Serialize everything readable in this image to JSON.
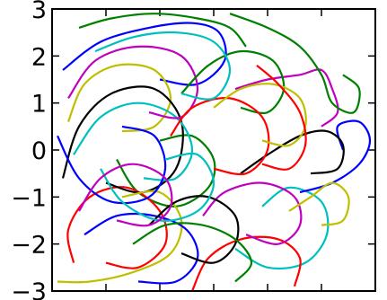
{
  "chart_data": {
    "type": "line",
    "xlim": [
      0,
      6
    ],
    "ylim": [
      -3,
      3
    ],
    "yticks": [
      {
        "value": 3,
        "label": "3"
      },
      {
        "value": 2,
        "label": "2"
      },
      {
        "value": 1,
        "label": "1"
      },
      {
        "value": 0,
        "label": "0"
      },
      {
        "value": -1,
        "label": "−1"
      },
      {
        "value": -2,
        "label": "−2"
      },
      {
        "value": -3,
        "label": "−3"
      }
    ],
    "xticks": [
      1,
      2,
      3,
      4,
      5
    ],
    "grid": false,
    "legend": "none",
    "colors": [
      "#0000ff",
      "#008000",
      "#ff0000",
      "#00bfbf",
      "#bf00bf",
      "#bfbf00",
      "#000000"
    ],
    "series": [
      {
        "color": "#0000ff",
        "points": [
          [
            0.2,
            1.7
          ],
          [
            0.9,
            2.3
          ],
          [
            1.8,
            2.6
          ],
          [
            2.6,
            2.7
          ],
          [
            3.1,
            2.5
          ],
          [
            3.2,
            1.9
          ],
          [
            2.7,
            1.4
          ],
          [
            2.0,
            1.5
          ]
        ]
      },
      {
        "color": "#008000",
        "points": [
          [
            1.2,
            -0.2
          ],
          [
            1.6,
            -0.9
          ],
          [
            2.3,
            -1.2
          ],
          [
            2.9,
            -0.8
          ],
          [
            3.0,
            -0.2
          ],
          [
            2.6,
            0.3
          ],
          [
            2.0,
            0.2
          ]
        ]
      },
      {
        "color": "#ff0000",
        "points": [
          [
            0.4,
            -2.4
          ],
          [
            0.3,
            -1.7
          ],
          [
            0.7,
            -1.0
          ],
          [
            1.4,
            -0.8
          ],
          [
            2.0,
            -1.3
          ],
          [
            2.1,
            -2.0
          ],
          [
            1.6,
            -2.5
          ],
          [
            1.0,
            -2.4
          ]
        ]
      },
      {
        "color": "#00bfbf",
        "points": [
          [
            3.4,
            -2.1
          ],
          [
            4.0,
            -2.5
          ],
          [
            4.7,
            -2.4
          ],
          [
            5.1,
            -1.8
          ],
          [
            5.0,
            -1.1
          ],
          [
            4.4,
            -0.8
          ],
          [
            3.9,
            -1.2
          ]
        ]
      },
      {
        "color": "#bf00bf",
        "points": [
          [
            3.4,
            1.3
          ],
          [
            4.0,
            1.5
          ],
          [
            4.6,
            1.6
          ],
          [
            5.0,
            1.7
          ],
          [
            5.2,
            1.3
          ],
          [
            5.3,
            0.8
          ],
          [
            5.0,
            0.5
          ]
        ]
      },
      {
        "color": "#bfbf00",
        "points": [
          [
            0.3,
            0.6
          ],
          [
            0.6,
            1.4
          ],
          [
            1.2,
            1.8
          ],
          [
            1.9,
            1.7
          ],
          [
            2.2,
            1.1
          ],
          [
            1.9,
            0.5
          ],
          [
            1.3,
            0.4
          ]
        ]
      },
      {
        "color": "#000000",
        "points": [
          [
            0.2,
            -0.6
          ],
          [
            0.5,
            0.5
          ],
          [
            1.1,
            1.2
          ],
          [
            1.9,
            1.3
          ],
          [
            2.4,
            0.6
          ],
          [
            2.3,
            -0.4
          ],
          [
            1.7,
            -0.9
          ],
          [
            1.0,
            -0.7
          ]
        ]
      },
      {
        "color": "#0000ff",
        "points": [
          [
            4.6,
            -0.9
          ],
          [
            5.2,
            -0.7
          ],
          [
            5.7,
            -0.3
          ],
          [
            5.9,
            0.2
          ],
          [
            5.7,
            0.6
          ],
          [
            5.3,
            0.5
          ],
          [
            5.4,
            0.0
          ]
        ]
      },
      {
        "color": "#008000",
        "points": [
          [
            3.3,
            2.9
          ],
          [
            4.0,
            2.6
          ],
          [
            4.6,
            2.2
          ],
          [
            5.0,
            1.6
          ],
          [
            5.2,
            1.0
          ],
          [
            5.6,
            0.8
          ],
          [
            5.7,
            1.3
          ],
          [
            5.4,
            1.6
          ]
        ]
      },
      {
        "color": "#ff0000",
        "points": [
          [
            2.6,
            -3.0
          ],
          [
            2.9,
            -2.3
          ],
          [
            3.5,
            -1.9
          ],
          [
            4.2,
            -1.9
          ],
          [
            4.6,
            -2.3
          ],
          [
            4.5,
            -2.9
          ]
        ]
      },
      {
        "color": "#00bfbf",
        "points": [
          [
            0.4,
            -0.1
          ],
          [
            0.9,
            0.7
          ],
          [
            1.6,
            1.0
          ],
          [
            2.3,
            0.7
          ],
          [
            2.6,
            0.0
          ],
          [
            2.3,
            -0.6
          ],
          [
            1.7,
            -0.6
          ]
        ]
      },
      {
        "color": "#bf00bf",
        "points": [
          [
            0.3,
            1.1
          ],
          [
            0.8,
            1.9
          ],
          [
            1.6,
            2.2
          ],
          [
            2.4,
            2.0
          ],
          [
            2.7,
            1.3
          ],
          [
            2.4,
            0.7
          ],
          [
            1.8,
            0.8
          ]
        ]
      },
      {
        "color": "#bfbf00",
        "points": [
          [
            0.1,
            -2.8
          ],
          [
            0.7,
            -2.8
          ],
          [
            1.5,
            -2.6
          ],
          [
            2.2,
            -2.2
          ],
          [
            2.4,
            -1.5
          ],
          [
            2.0,
            -0.9
          ],
          [
            1.3,
            -1.0
          ]
        ]
      },
      {
        "color": "#000000",
        "points": [
          [
            3.5,
            -0.5
          ],
          [
            4.0,
            -0.1
          ],
          [
            4.6,
            0.3
          ],
          [
            5.1,
            0.4
          ],
          [
            5.4,
            0.1
          ],
          [
            5.3,
            -0.4
          ],
          [
            4.8,
            -0.5
          ]
        ]
      },
      {
        "color": "#0000ff",
        "points": [
          [
            0.6,
            -1.8
          ],
          [
            1.2,
            -1.4
          ],
          [
            1.9,
            -1.4
          ],
          [
            2.5,
            -1.7
          ],
          [
            2.7,
            -2.3
          ],
          [
            2.3,
            -2.8
          ],
          [
            1.6,
            -2.8
          ]
        ]
      },
      {
        "color": "#008000",
        "points": [
          [
            2.4,
            1.2
          ],
          [
            2.9,
            1.8
          ],
          [
            3.5,
            2.1
          ],
          [
            4.1,
            1.9
          ],
          [
            4.3,
            1.3
          ],
          [
            4.0,
            0.8
          ],
          [
            3.5,
            0.9
          ]
        ]
      },
      {
        "color": "#ff0000",
        "points": [
          [
            2.2,
            0.3
          ],
          [
            2.6,
            0.9
          ],
          [
            3.3,
            1.1
          ],
          [
            3.9,
            0.7
          ],
          [
            4.0,
            0.0
          ],
          [
            3.6,
            -0.5
          ],
          [
            3.0,
            -0.4
          ]
        ]
      },
      {
        "color": "#00bfbf",
        "points": [
          [
            0.8,
            2.1
          ],
          [
            1.5,
            2.4
          ],
          [
            2.3,
            2.5
          ],
          [
            3.0,
            2.3
          ],
          [
            3.3,
            1.7
          ],
          [
            3.0,
            1.1
          ],
          [
            2.4,
            1.2
          ]
        ]
      },
      {
        "color": "#bf00bf",
        "points": [
          [
            2.8,
            -1.4
          ],
          [
            3.2,
            -0.9
          ],
          [
            3.9,
            -0.7
          ],
          [
            4.5,
            -1.0
          ],
          [
            4.6,
            -1.6
          ],
          [
            4.2,
            -2.0
          ],
          [
            3.6,
            -1.8
          ]
        ]
      },
      {
        "color": "#bfbf00",
        "points": [
          [
            3.0,
            0.9
          ],
          [
            3.5,
            1.3
          ],
          [
            4.1,
            1.4
          ],
          [
            4.6,
            1.1
          ],
          [
            4.7,
            0.5
          ],
          [
            4.4,
            0.1
          ],
          [
            3.9,
            0.2
          ]
        ]
      },
      {
        "color": "#000000",
        "points": [
          [
            1.8,
            -1.6
          ],
          [
            2.3,
            -1.1
          ],
          [
            2.9,
            -1.0
          ],
          [
            3.4,
            -1.4
          ],
          [
            3.4,
            -2.0
          ],
          [
            3.0,
            -2.4
          ],
          [
            2.4,
            -2.2
          ]
        ]
      },
      {
        "color": "#0000ff",
        "points": [
          [
            0.1,
            0.3
          ],
          [
            0.5,
            -0.6
          ],
          [
            1.1,
            -1.1
          ],
          [
            1.8,
            -1.0
          ],
          [
            2.1,
            -0.4
          ],
          [
            1.9,
            0.3
          ],
          [
            1.3,
            0.5
          ]
        ]
      },
      {
        "color": "#008000",
        "points": [
          [
            0.5,
            2.6
          ],
          [
            1.1,
            2.8
          ],
          [
            1.9,
            2.9
          ],
          [
            2.7,
            2.8
          ],
          [
            3.3,
            2.6
          ],
          [
            3.6,
            2.2
          ]
        ]
      },
      {
        "color": "#ff0000",
        "points": [
          [
            3.8,
            1.8
          ],
          [
            4.2,
            1.4
          ],
          [
            4.6,
            0.8
          ],
          [
            4.7,
            0.1
          ],
          [
            4.4,
            -0.4
          ],
          [
            3.9,
            -0.3
          ]
        ]
      },
      {
        "color": "#00bfbf",
        "points": [
          [
            0.9,
            -0.4
          ],
          [
            1.3,
            -1.1
          ],
          [
            2.0,
            -1.5
          ],
          [
            2.7,
            -1.3
          ],
          [
            3.0,
            -0.7
          ],
          [
            2.7,
            -0.1
          ],
          [
            2.1,
            -0.2
          ]
        ]
      },
      {
        "color": "#bfbf00",
        "points": [
          [
            4.4,
            -1.3
          ],
          [
            4.8,
            -1.0
          ],
          [
            5.2,
            -0.7
          ],
          [
            5.5,
            -1.0
          ],
          [
            5.4,
            -1.5
          ],
          [
            5.0,
            -1.6
          ]
        ]
      },
      {
        "color": "#bf00bf",
        "points": [
          [
            0.5,
            -1.3
          ],
          [
            0.9,
            -0.6
          ],
          [
            1.5,
            -0.3
          ],
          [
            2.1,
            -0.6
          ],
          [
            2.2,
            -1.2
          ],
          [
            1.8,
            -1.6
          ],
          [
            1.2,
            -1.5
          ]
        ]
      },
      {
        "color": "#008000",
        "points": [
          [
            1.5,
            -2.0
          ],
          [
            2.1,
            -1.6
          ],
          [
            2.8,
            -1.6
          ],
          [
            3.4,
            -1.9
          ],
          [
            3.7,
            -2.4
          ],
          [
            3.4,
            -2.8
          ]
        ]
      }
    ]
  }
}
